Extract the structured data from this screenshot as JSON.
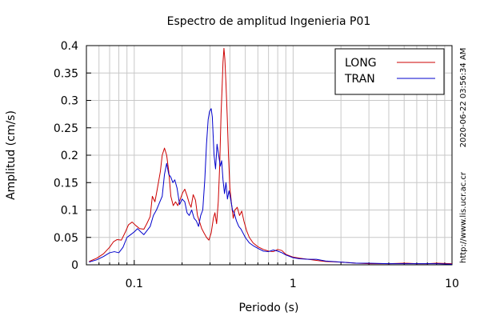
{
  "chart_data": {
    "type": "line",
    "title": "Espectro de amplitud Ingenieria P01",
    "xlabel": "Periodo (s)",
    "ylabel": "Amplitud (cm/s)",
    "x_scale": "log",
    "xlim": [
      0.05,
      10
    ],
    "ylim": [
      0,
      0.4
    ],
    "x_ticks": [
      {
        "value": 0.1,
        "label": "0.1"
      },
      {
        "value": 1,
        "label": "1"
      },
      {
        "value": 10,
        "label": "10"
      }
    ],
    "y_ticks": [
      {
        "value": 0,
        "label": "0"
      },
      {
        "value": 0.05,
        "label": "0.05"
      },
      {
        "value": 0.1,
        "label": "0.1"
      },
      {
        "value": 0.15,
        "label": "0.15"
      },
      {
        "value": 0.2,
        "label": "0.2"
      },
      {
        "value": 0.25,
        "label": "0.25"
      },
      {
        "value": 0.3,
        "label": "0.3"
      },
      {
        "value": 0.35,
        "label": "0.35"
      },
      {
        "value": 0.4,
        "label": "0.4"
      }
    ],
    "grid": true,
    "legend_position": "top-right",
    "series": [
      {
        "name": "LONG",
        "color": "#cc0000",
        "points": [
          [
            0.052,
            0.006
          ],
          [
            0.058,
            0.012
          ],
          [
            0.064,
            0.02
          ],
          [
            0.07,
            0.032
          ],
          [
            0.074,
            0.042
          ],
          [
            0.078,
            0.046
          ],
          [
            0.083,
            0.045
          ],
          [
            0.088,
            0.06
          ],
          [
            0.092,
            0.073
          ],
          [
            0.097,
            0.078
          ],
          [
            0.102,
            0.072
          ],
          [
            0.108,
            0.066
          ],
          [
            0.115,
            0.065
          ],
          [
            0.12,
            0.075
          ],
          [
            0.126,
            0.088
          ],
          [
            0.13,
            0.125
          ],
          [
            0.135,
            0.115
          ],
          [
            0.14,
            0.14
          ],
          [
            0.146,
            0.17
          ],
          [
            0.15,
            0.2
          ],
          [
            0.155,
            0.213
          ],
          [
            0.16,
            0.2
          ],
          [
            0.165,
            0.17
          ],
          [
            0.17,
            0.125
          ],
          [
            0.176,
            0.108
          ],
          [
            0.182,
            0.115
          ],
          [
            0.188,
            0.108
          ],
          [
            0.195,
            0.12
          ],
          [
            0.202,
            0.132
          ],
          [
            0.208,
            0.138
          ],
          [
            0.215,
            0.126
          ],
          [
            0.222,
            0.112
          ],
          [
            0.228,
            0.105
          ],
          [
            0.235,
            0.128
          ],
          [
            0.243,
            0.118
          ],
          [
            0.25,
            0.09
          ],
          [
            0.258,
            0.078
          ],
          [
            0.266,
            0.066
          ],
          [
            0.275,
            0.058
          ],
          [
            0.285,
            0.05
          ],
          [
            0.295,
            0.045
          ],
          [
            0.305,
            0.058
          ],
          [
            0.315,
            0.085
          ],
          [
            0.322,
            0.095
          ],
          [
            0.33,
            0.075
          ],
          [
            0.338,
            0.115
          ],
          [
            0.345,
            0.18
          ],
          [
            0.352,
            0.275
          ],
          [
            0.358,
            0.33
          ],
          [
            0.362,
            0.37
          ],
          [
            0.367,
            0.395
          ],
          [
            0.372,
            0.375
          ],
          [
            0.378,
            0.33
          ],
          [
            0.385,
            0.27
          ],
          [
            0.392,
            0.2
          ],
          [
            0.4,
            0.14
          ],
          [
            0.41,
            0.11
          ],
          [
            0.42,
            0.085
          ],
          [
            0.43,
            0.1
          ],
          [
            0.445,
            0.105
          ],
          [
            0.46,
            0.09
          ],
          [
            0.475,
            0.098
          ],
          [
            0.49,
            0.08
          ],
          [
            0.51,
            0.062
          ],
          [
            0.53,
            0.05
          ],
          [
            0.56,
            0.04
          ],
          [
            0.6,
            0.033
          ],
          [
            0.65,
            0.028
          ],
          [
            0.7,
            0.025
          ],
          [
            0.75,
            0.024
          ],
          [
            0.8,
            0.028
          ],
          [
            0.85,
            0.026
          ],
          [
            0.9,
            0.019
          ],
          [
            1.0,
            0.014
          ],
          [
            1.1,
            0.012
          ],
          [
            1.25,
            0.01
          ],
          [
            1.4,
            0.008
          ],
          [
            1.6,
            0.006
          ],
          [
            2.0,
            0.005
          ],
          [
            2.5,
            0.003
          ],
          [
            3.0,
            0.002
          ],
          [
            4.0,
            0.002
          ],
          [
            5.0,
            0.003
          ],
          [
            6.0,
            0.002
          ],
          [
            7.0,
            0.002
          ],
          [
            8.0,
            0.003
          ],
          [
            10.0,
            0.002
          ]
        ]
      },
      {
        "name": "TRAN",
        "color": "#0000cc",
        "points": [
          [
            0.052,
            0.005
          ],
          [
            0.058,
            0.009
          ],
          [
            0.064,
            0.015
          ],
          [
            0.07,
            0.022
          ],
          [
            0.075,
            0.024
          ],
          [
            0.08,
            0.022
          ],
          [
            0.085,
            0.032
          ],
          [
            0.09,
            0.05
          ],
          [
            0.095,
            0.055
          ],
          [
            0.1,
            0.06
          ],
          [
            0.105,
            0.066
          ],
          [
            0.11,
            0.06
          ],
          [
            0.115,
            0.055
          ],
          [
            0.12,
            0.062
          ],
          [
            0.126,
            0.07
          ],
          [
            0.132,
            0.09
          ],
          [
            0.138,
            0.1
          ],
          [
            0.145,
            0.115
          ],
          [
            0.15,
            0.125
          ],
          [
            0.155,
            0.165
          ],
          [
            0.16,
            0.185
          ],
          [
            0.165,
            0.165
          ],
          [
            0.17,
            0.16
          ],
          [
            0.175,
            0.15
          ],
          [
            0.18,
            0.155
          ],
          [
            0.186,
            0.14
          ],
          [
            0.193,
            0.11
          ],
          [
            0.2,
            0.12
          ],
          [
            0.208,
            0.115
          ],
          [
            0.215,
            0.095
          ],
          [
            0.222,
            0.09
          ],
          [
            0.23,
            0.1
          ],
          [
            0.238,
            0.085
          ],
          [
            0.246,
            0.08
          ],
          [
            0.254,
            0.07
          ],
          [
            0.262,
            0.09
          ],
          [
            0.27,
            0.1
          ],
          [
            0.278,
            0.155
          ],
          [
            0.285,
            0.22
          ],
          [
            0.292,
            0.265
          ],
          [
            0.298,
            0.28
          ],
          [
            0.305,
            0.285
          ],
          [
            0.31,
            0.27
          ],
          [
            0.318,
            0.2
          ],
          [
            0.325,
            0.175
          ],
          [
            0.332,
            0.22
          ],
          [
            0.34,
            0.2
          ],
          [
            0.348,
            0.18
          ],
          [
            0.355,
            0.19
          ],
          [
            0.362,
            0.155
          ],
          [
            0.37,
            0.13
          ],
          [
            0.378,
            0.15
          ],
          [
            0.386,
            0.12
          ],
          [
            0.395,
            0.135
          ],
          [
            0.405,
            0.12
          ],
          [
            0.415,
            0.1
          ],
          [
            0.425,
            0.095
          ],
          [
            0.44,
            0.08
          ],
          [
            0.455,
            0.07
          ],
          [
            0.47,
            0.065
          ],
          [
            0.5,
            0.05
          ],
          [
            0.53,
            0.04
          ],
          [
            0.56,
            0.035
          ],
          [
            0.6,
            0.03
          ],
          [
            0.65,
            0.025
          ],
          [
            0.7,
            0.024
          ],
          [
            0.75,
            0.027
          ],
          [
            0.8,
            0.025
          ],
          [
            0.85,
            0.022
          ],
          [
            0.9,
            0.018
          ],
          [
            1.0,
            0.013
          ],
          [
            1.1,
            0.011
          ],
          [
            1.25,
            0.01
          ],
          [
            1.4,
            0.01
          ],
          [
            1.6,
            0.007
          ],
          [
            2.0,
            0.005
          ],
          [
            2.5,
            0.003
          ],
          [
            3.0,
            0.003
          ],
          [
            4.0,
            0.002
          ],
          [
            5.0,
            0.002
          ],
          [
            6.0,
            0.002
          ],
          [
            8.0,
            0.002
          ],
          [
            10.0,
            0.001
          ]
        ]
      }
    ]
  },
  "side_labels": {
    "timestamp": "2020-06-22 03:56:34 AM",
    "url": "http://www.lis.ucr.ac.cr"
  }
}
